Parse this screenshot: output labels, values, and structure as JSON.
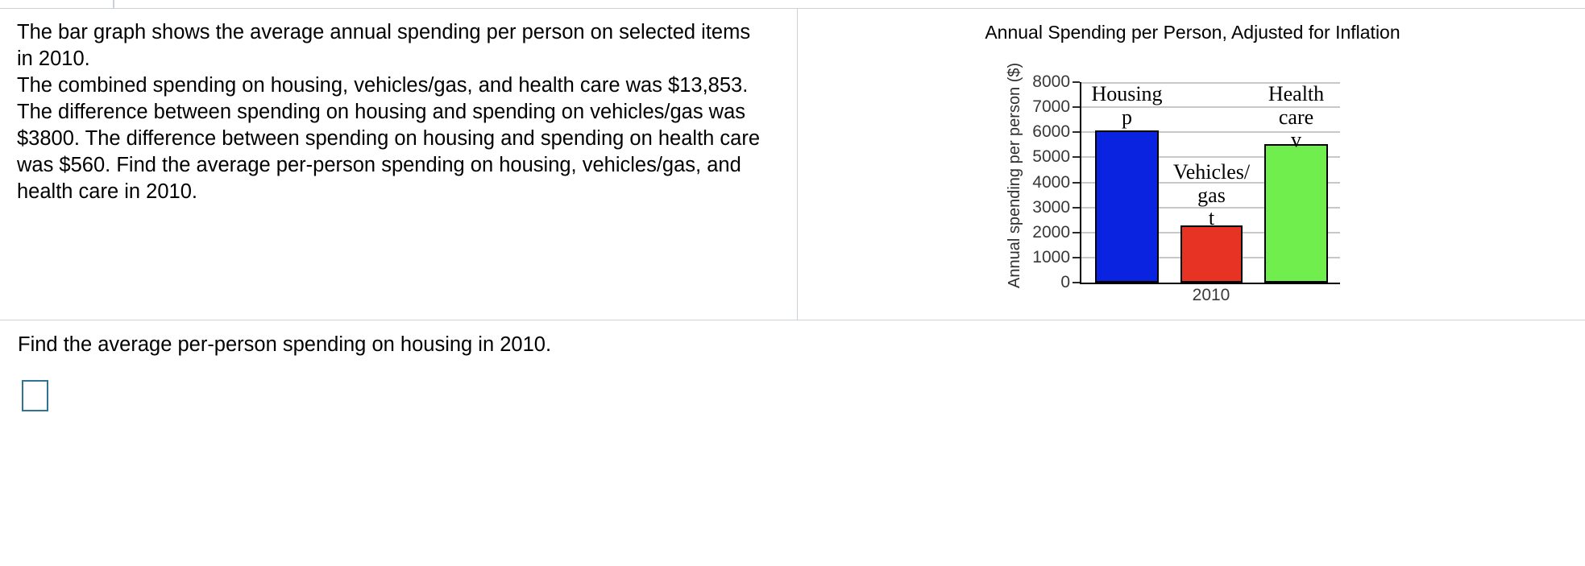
{
  "problem": {
    "paragraph1": "The bar graph shows the average annual spending per person on selected items\nin 2010.",
    "paragraph2": "The combined spending on housing, vehicles/gas, and health care was $13,853.\nThe difference between spending on housing and spending on vehicles/gas was\n$3800. The difference between spending on housing and spending on health care\nwas $560. Find the average per-person spending on housing, vehicles/gas, and\nhealth care in 2010."
  },
  "question": {
    "text": "Find the average per-person spending on housing in 2010."
  },
  "answer_input": {
    "value": "",
    "border_color": "#2e7494"
  },
  "chart_data": {
    "type": "bar",
    "title": "Annual Spending per Person, Adjusted for Inflation",
    "ylabel": "Annual spending per person ($)",
    "xlabel": "",
    "x_group_label": "2010",
    "categories": [
      "Housing",
      "Vehicles/gas",
      "Health care"
    ],
    "category_label_lines": [
      [
        "Housing"
      ],
      [
        "Vehicles/",
        "gas"
      ],
      [
        "Health",
        "care"
      ]
    ],
    "bar_letter_labels": [
      "p",
      "t",
      "v"
    ],
    "values": [
      6071,
      2271,
      5511
    ],
    "bar_colors": [
      "#0a23e0",
      "#e63323",
      "#70ee4e"
    ],
    "ylim": [
      0,
      8000
    ],
    "yticks": [
      0,
      1000,
      2000,
      3000,
      4000,
      5000,
      6000,
      7000,
      8000
    ],
    "grid": true,
    "legend": "none",
    "gridline_color": "#c8c8c8"
  }
}
